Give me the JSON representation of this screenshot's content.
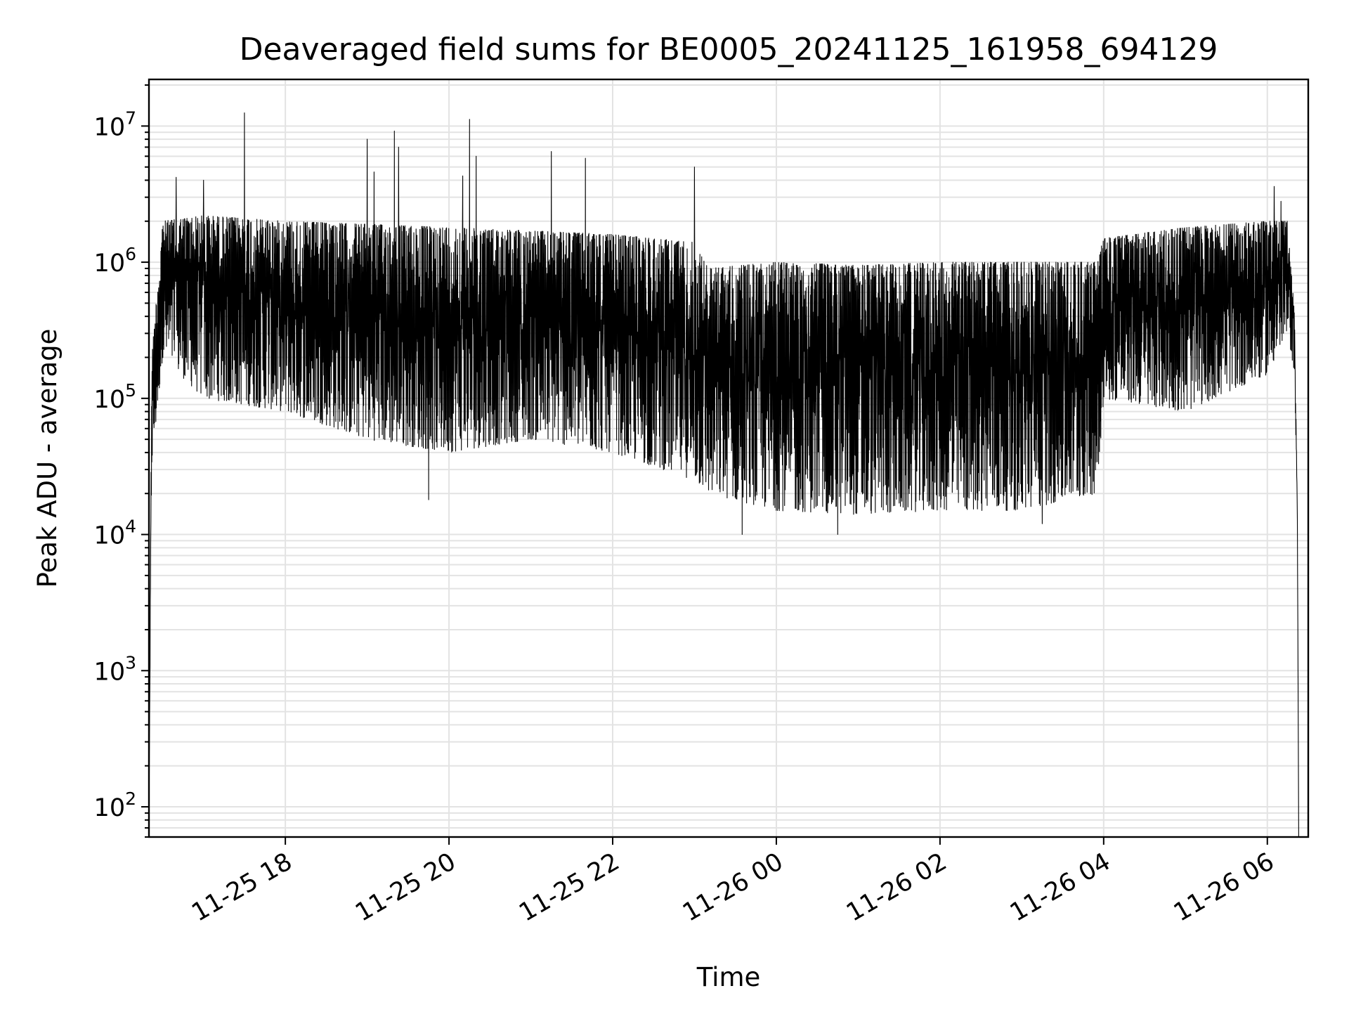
{
  "chart_data": {
    "type": "line",
    "title": "Deaveraged field sums for BE0005_20241125_161958_694129",
    "xlabel": "Time",
    "ylabel": "Peak ADU - average",
    "y_scale": "log",
    "ylim": [
      60,
      22000000
    ],
    "xlim": [
      "2024-11-25 16:20",
      "2024-11-26 06:30"
    ],
    "grid": true,
    "grid_minor": true,
    "x_ticks": [
      {
        "value": "2024-11-25 18:00",
        "label": "11-25 18"
      },
      {
        "value": "2024-11-25 20:00",
        "label": "11-25 20"
      },
      {
        "value": "2024-11-25 22:00",
        "label": "11-25 22"
      },
      {
        "value": "2024-11-26 00:00",
        "label": "11-26 00"
      },
      {
        "value": "2024-11-26 02:00",
        "label": "11-26 02"
      },
      {
        "value": "2024-11-26 04:00",
        "label": "11-26 04"
      },
      {
        "value": "2024-11-26 06:00",
        "label": "11-26 06"
      }
    ],
    "y_ticks": [
      {
        "value": 100,
        "base": "10",
        "exp": "2"
      },
      {
        "value": 1000,
        "base": "10",
        "exp": "3"
      },
      {
        "value": 10000,
        "base": "10",
        "exp": "4"
      },
      {
        "value": 100000,
        "base": "10",
        "exp": "5"
      },
      {
        "value": 1000000,
        "base": "10",
        "exp": "6"
      },
      {
        "value": 10000000,
        "base": "10",
        "exp": "7"
      }
    ],
    "series_color": "#000000",
    "envelope": [
      {
        "t": "2024-11-25 16:20",
        "low": 70,
        "high": 70
      },
      {
        "t": "2024-11-25 16:22",
        "low": 30000,
        "high": 200000
      },
      {
        "t": "2024-11-25 16:30",
        "low": 200000,
        "high": 2000000
      },
      {
        "t": "2024-11-25 17:00",
        "low": 100000,
        "high": 2200000
      },
      {
        "t": "2024-11-25 18:00",
        "low": 80000,
        "high": 2000000
      },
      {
        "t": "2024-11-25 19:00",
        "low": 50000,
        "high": 1900000
      },
      {
        "t": "2024-11-25 20:00",
        "low": 40000,
        "high": 1800000
      },
      {
        "t": "2024-11-25 21:00",
        "low": 50000,
        "high": 1700000
      },
      {
        "t": "2024-11-25 22:00",
        "low": 40000,
        "high": 1600000
      },
      {
        "t": "2024-11-25 23:00",
        "low": 25000,
        "high": 1400000
      },
      {
        "t": "2024-11-25 23:10",
        "low": 20000,
        "high": 900000
      },
      {
        "t": "2024-11-26 00:00",
        "low": 15000,
        "high": 1000000
      },
      {
        "t": "2024-11-26 01:00",
        "low": 14000,
        "high": 950000
      },
      {
        "t": "2024-11-26 02:00",
        "low": 15000,
        "high": 1000000
      },
      {
        "t": "2024-11-26 03:00",
        "low": 15000,
        "high": 1000000
      },
      {
        "t": "2024-11-26 03:55",
        "low": 20000,
        "high": 1000000
      },
      {
        "t": "2024-11-26 04:00",
        "low": 100000,
        "high": 1500000
      },
      {
        "t": "2024-11-26 05:00",
        "low": 80000,
        "high": 1800000
      },
      {
        "t": "2024-11-26 06:00",
        "low": 150000,
        "high": 2000000
      },
      {
        "t": "2024-11-26 06:15",
        "low": 300000,
        "high": 2000000
      },
      {
        "t": "2024-11-26 06:20",
        "low": 150000,
        "high": 400000
      },
      {
        "t": "2024-11-26 06:22",
        "low": 15000,
        "high": 15000
      },
      {
        "t": "2024-11-26 06:23",
        "low": 60,
        "high": 60
      }
    ],
    "spikes": [
      {
        "t": "2024-11-25 16:40",
        "value": 4200000
      },
      {
        "t": "2024-11-25 17:00",
        "value": 4000000
      },
      {
        "t": "2024-11-25 17:30",
        "value": 12500000
      },
      {
        "t": "2024-11-25 19:00",
        "value": 8000000
      },
      {
        "t": "2024-11-25 19:05",
        "value": 4600000
      },
      {
        "t": "2024-11-25 19:20",
        "value": 9200000
      },
      {
        "t": "2024-11-25 19:23",
        "value": 7000000
      },
      {
        "t": "2024-11-25 20:10",
        "value": 4300000
      },
      {
        "t": "2024-11-25 20:15",
        "value": 11200000
      },
      {
        "t": "2024-11-25 20:20",
        "value": 6000000
      },
      {
        "t": "2024-11-25 21:15",
        "value": 6500000
      },
      {
        "t": "2024-11-25 21:40",
        "value": 5800000
      },
      {
        "t": "2024-11-25 23:00",
        "value": 5000000
      },
      {
        "t": "2024-11-26 06:05",
        "value": 3600000
      },
      {
        "t": "2024-11-26 06:10",
        "value": 2800000
      }
    ],
    "dips": [
      {
        "t": "2024-11-25 19:45",
        "value": 18000
      },
      {
        "t": "2024-11-25 23:35",
        "value": 10000
      },
      {
        "t": "2024-11-26 00:45",
        "value": 10000
      },
      {
        "t": "2024-11-26 03:15",
        "value": 12000
      }
    ]
  }
}
